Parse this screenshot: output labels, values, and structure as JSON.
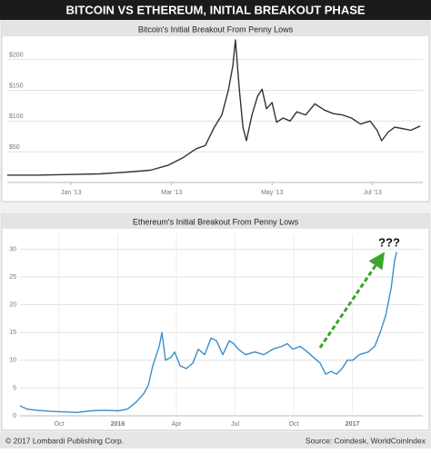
{
  "title": "BITCOIN VS ETHEREUM, INITIAL BREAKOUT PHASE",
  "footer": {
    "left": "© 2017 Lombardi Publishing Corp.",
    "right": "Source: Coindesk, WorldCoinIndex"
  },
  "chart_data": [
    {
      "type": "line",
      "title": "Bitcoin's Initial Breakout From Penny Lows",
      "color": "#333333",
      "grid": true,
      "xgrid": false,
      "xlim": [
        -0.27,
        8.0
      ],
      "ylim": [
        0,
        235
      ],
      "xticks": [
        {
          "value": 1,
          "label": "Jan '13"
        },
        {
          "value": 3,
          "label": "Mar '13"
        },
        {
          "value": 5,
          "label": "May '13"
        },
        {
          "value": 7,
          "label": "Jul '13"
        }
      ],
      "yticks": [
        {
          "value": 50,
          "label": "$50"
        },
        {
          "value": 100,
          "label": "$100"
        },
        {
          "value": 150,
          "label": "$150"
        },
        {
          "value": 200,
          "label": "$200"
        }
      ],
      "x": [
        -0.27,
        0.31,
        1,
        1.58,
        2.13,
        2.58,
        2.93,
        3.22,
        3.49,
        3.67,
        3.85,
        4.0,
        4.13,
        4.22,
        4.27,
        4.35,
        4.42,
        4.49,
        4.6,
        4.71,
        4.8,
        4.89,
        5.0,
        5.09,
        5.22,
        5.36,
        5.49,
        5.67,
        5.85,
        6.04,
        6.22,
        6.4,
        6.58,
        6.76,
        6.95,
        7.09,
        7.18,
        7.31,
        7.44,
        7.58,
        7.76,
        7.95
      ],
      "values": [
        12,
        12,
        13,
        14,
        17,
        20,
        28,
        40,
        55,
        60,
        90,
        110,
        150,
        190,
        232,
        150,
        90,
        68,
        110,
        140,
        152,
        120,
        130,
        98,
        105,
        100,
        115,
        110,
        128,
        118,
        112,
        110,
        105,
        95,
        100,
        85,
        68,
        82,
        90,
        88,
        85,
        92
      ]
    },
    {
      "type": "line",
      "title": "Ethereum's Initial Breakout From Penny Lows",
      "color": "#3a8fc9",
      "grid": true,
      "xgrid": true,
      "annotation": "???",
      "xlim": [
        -2.0,
        18.6
      ],
      "ylim": [
        0,
        32.7
      ],
      "xticks": [
        {
          "value": 0,
          "label": "Oct"
        },
        {
          "value": 3,
          "label": "2016",
          "bold": true
        },
        {
          "value": 6,
          "label": "Apr"
        },
        {
          "value": 9,
          "label": "Jul"
        },
        {
          "value": 12,
          "label": "Oct"
        },
        {
          "value": 15,
          "label": "2017",
          "bold": true
        }
      ],
      "yticks": [
        0,
        5,
        10,
        15,
        20,
        25,
        30
      ],
      "x": [
        -2.0,
        -1.63,
        -1.16,
        -0.47,
        0.23,
        0.93,
        1.63,
        2.33,
        3.02,
        3.49,
        3.95,
        4.33,
        4.56,
        4.79,
        4.98,
        5.12,
        5.26,
        5.44,
        5.72,
        5.91,
        6.19,
        6.51,
        6.84,
        7.12,
        7.44,
        7.77,
        8.05,
        8.37,
        8.7,
        8.93,
        9.16,
        9.53,
        10.0,
        10.47,
        10.93,
        11.4,
        11.67,
        11.95,
        12.33,
        12.7,
        13.02,
        13.35,
        13.63,
        13.91,
        14.19,
        14.47,
        14.74,
        15.02,
        15.35,
        15.81,
        16.14,
        16.42,
        16.7,
        16.98,
        17.16,
        17.26
      ],
      "values": [
        1.8,
        1.2,
        1.0,
        0.8,
        0.7,
        0.6,
        0.9,
        1.0,
        0.9,
        1.2,
        2.5,
        4,
        5.5,
        9,
        11,
        12.5,
        15,
        10,
        10.5,
        11.5,
        9,
        8.5,
        9.5,
        12,
        11,
        14,
        13.5,
        11,
        13.5,
        13,
        12,
        11,
        11.5,
        11,
        12,
        12.5,
        13,
        12,
        12.5,
        11.5,
        10.5,
        9.5,
        7.5,
        8,
        7.5,
        8.5,
        10,
        10,
        11,
        11.5,
        12.5,
        15,
        18,
        23,
        28,
        29.5
      ]
    }
  ]
}
